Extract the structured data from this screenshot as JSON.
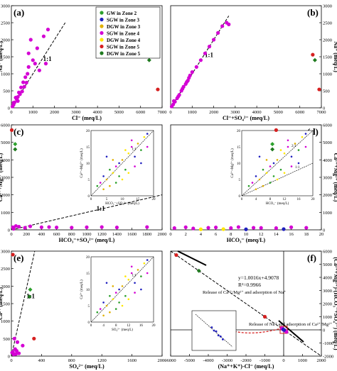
{
  "colors": {
    "gw_zone2": "#2ca02c",
    "sgw_zone3": "#1f1fbf",
    "dgw_zone3": "#e0b000",
    "sgw_zone4": "#d400d4",
    "dgw_zone4": "#ffe800",
    "sgw_zone5": "#d62020",
    "dgw_zone5": "#1f7a1f",
    "fit_line": "#000000"
  },
  "legend": [
    {
      "label": "GW in Zone 2",
      "color_key": "gw_zone2"
    },
    {
      "label": "SGW in Zone 3",
      "color_key": "sgw_zone3"
    },
    {
      "label": "DGW in Zone 3",
      "color_key": "dgw_zone3"
    },
    {
      "label": "SGW in Zone 4",
      "color_key": "sgw_zone4"
    },
    {
      "label": "DGW in Zone 4",
      "color_key": "dgw_zone4"
    },
    {
      "label": "SGW in Zone 5",
      "color_key": "sgw_zone5"
    },
    {
      "label": "DGW in Zone 5",
      "color_key": "dgw_zone5"
    }
  ],
  "chart_data": [
    {
      "panel": "(a)",
      "type": "scatter",
      "xlabel": "Cl⁻ (meq/L)",
      "ylabel": "Na⁺ (meq/L)",
      "xlim": [
        0,
        7000
      ],
      "ylim": [
        0,
        3000
      ],
      "xticks": [
        "0",
        "1000",
        "2000",
        "3000",
        "4000",
        "5000",
        "6000",
        "7000"
      ],
      "yticks": [
        "0",
        "500",
        "1000",
        "1500",
        "2000",
        "2500",
        "3000"
      ],
      "reference_line": {
        "label": "1:1",
        "points": [
          [
            0,
            0
          ],
          [
            2500,
            2500
          ]
        ]
      },
      "series": [
        {
          "name": "SGW in Zone 4",
          "color_key": "sgw_zone4",
          "points": [
            [
              50,
              40
            ],
            [
              100,
              90
            ],
            [
              150,
              160
            ],
            [
              250,
              250
            ],
            [
              300,
              320
            ],
            [
              400,
              400
            ],
            [
              500,
              480
            ],
            [
              600,
              620
            ],
            [
              700,
              740
            ],
            [
              800,
              1200
            ],
            [
              800,
              1600
            ],
            [
              900,
              2000
            ],
            [
              1000,
              1400
            ],
            [
              1200,
              1750
            ],
            [
              1300,
              1100
            ],
            [
              1500,
              2100
            ],
            [
              1600,
              1300
            ],
            [
              100,
              150
            ],
            [
              200,
              300
            ],
            [
              350,
              450
            ],
            [
              450,
              600
            ],
            [
              550,
              750
            ],
            [
              300,
              200
            ],
            [
              650,
              900
            ],
            [
              750,
              1000
            ],
            [
              1100,
              1300
            ],
            [
              1700,
              2300
            ]
          ]
        },
        {
          "name": "SGW in Zone 5",
          "color_key": "sgw_zone5",
          "points": [
            [
              6200,
              1560
            ],
            [
              6800,
              540
            ]
          ]
        },
        {
          "name": "DGW in Zone 5",
          "color_key": "dgw_zone5",
          "points": [
            [
              6400,
              1400
            ]
          ]
        }
      ]
    },
    {
      "panel": "(b)",
      "type": "scatter",
      "xlabel": "Cl⁻+SO₄²⁻ (meq/L)",
      "ylabel": "Na⁺ (meq/L)",
      "xlim": [
        0,
        7000
      ],
      "ylim": [
        0,
        3000
      ],
      "xticks": [
        "0",
        "1000",
        "2000",
        "3000",
        "4000",
        "5000",
        "6000",
        "7000"
      ],
      "yticks": [
        "0",
        "500",
        "1000",
        "1500",
        "2000",
        "2500",
        "3000"
      ],
      "reference_line": {
        "label": "1:1",
        "points": [
          [
            0,
            0
          ],
          [
            2700,
            2700
          ]
        ]
      },
      "series": [
        {
          "name": "SGW in Zone 4",
          "color_key": "sgw_zone4",
          "points": [
            [
              50,
              40
            ],
            [
              120,
              100
            ],
            [
              200,
              180
            ],
            [
              300,
              280
            ],
            [
              400,
              380
            ],
            [
              500,
              500
            ],
            [
              600,
              620
            ],
            [
              700,
              700
            ],
            [
              800,
              800
            ],
            [
              900,
              950
            ],
            [
              1000,
              1050
            ],
            [
              1200,
              1200
            ],
            [
              1400,
              1400
            ],
            [
              1600,
              1600
            ],
            [
              1800,
              1800
            ],
            [
              2000,
              2000
            ],
            [
              2200,
              2200
            ],
            [
              2400,
              2400
            ],
            [
              2600,
              2500
            ],
            [
              2700,
              2450
            ],
            [
              150,
              200
            ],
            [
              350,
              330
            ],
            [
              550,
              560
            ],
            [
              750,
              760
            ],
            [
              850,
              880
            ]
          ]
        },
        {
          "name": "SGW in Zone 5",
          "color_key": "sgw_zone5",
          "points": [
            [
              6600,
              1560
            ],
            [
              6900,
              540
            ]
          ]
        },
        {
          "name": "DGW in Zone 5",
          "color_key": "dgw_zone5",
          "points": [
            [
              6700,
              1400
            ]
          ]
        }
      ]
    },
    {
      "panel": "(c)",
      "type": "scatter",
      "xlabel": "HCO₃⁻+SO₄²⁻ (meq/L)",
      "ylabel": "Ca²⁺+Mg²⁺ (meq/L)",
      "xlim": [
        0,
        2000
      ],
      "ylim": [
        0,
        6000
      ],
      "xticks": [
        "0",
        "200",
        "400",
        "600",
        "800",
        "1000",
        "1200",
        "1400",
        "1600",
        "1800",
        "2000"
      ],
      "yticks": [
        "0",
        "1000",
        "2000",
        "3000",
        "4000",
        "5000",
        "6000"
      ],
      "reference_line": {
        "label": "1:1",
        "points": [
          [
            0,
            0
          ],
          [
            2000,
            2000
          ]
        ]
      },
      "inset": {
        "xlabel": "HCO₃⁻+SO₄²⁻ (meq/L)",
        "ylabel": "Ca²⁺+Mg²⁺ (meq/L)",
        "xlim": [
          0,
          20
        ],
        "ylim": [
          0,
          20
        ],
        "xticks": [
          "0",
          "5",
          "10",
          "15",
          "20"
        ],
        "yticks": [
          "0",
          "5",
          "10",
          "15",
          "20"
        ],
        "line_label": "1:1"
      },
      "series": [
        {
          "name": "SGW in Zone 4",
          "color_key": "sgw_zone4",
          "points": [
            [
              20,
              150
            ],
            [
              60,
              220
            ],
            [
              100,
              180
            ],
            [
              180,
              120
            ],
            [
              250,
              200
            ],
            [
              400,
              150
            ],
            [
              500,
              160
            ],
            [
              600,
              140
            ],
            [
              800,
              130
            ],
            [
              1000,
              150
            ],
            [
              1200,
              160
            ],
            [
              1400,
              140
            ],
            [
              1800,
              160
            ],
            [
              30,
              60
            ]
          ]
        },
        {
          "name": "SGW in Zone 5",
          "color_key": "sgw_zone5",
          "points": [
            [
              5,
              5700
            ]
          ]
        },
        {
          "name": "DGW in Zone 5",
          "color_key": "dgw_zone5",
          "points": [
            [
              50,
              4600
            ]
          ]
        },
        {
          "name": "GW in Zone 2",
          "color_key": "gw_zone2",
          "points": [
            [
              50,
              4900
            ]
          ]
        }
      ]
    },
    {
      "panel": "(d)",
      "type": "scatter",
      "xlabel": "HCO₃⁻ (meq/L)",
      "ylabel": "Ca²⁺+Mg²⁺ (meq/L)",
      "xlim": [
        0,
        20
      ],
      "ylim": [
        0,
        6000
      ],
      "xticks": [
        "0",
        "2",
        "4",
        "6",
        "8",
        "10",
        "12",
        "14",
        "16",
        "18",
        "20"
      ],
      "yticks": [
        "0",
        "1000",
        "2000",
        "3000",
        "4000",
        "5000",
        "6000"
      ],
      "inset": {
        "xlabel": "HCO₃⁻ (meq/L)",
        "ylabel": "Ca²⁺+Mg²⁺ (meq/L)",
        "xlim": [
          0,
          20
        ],
        "ylim": [
          0,
          20
        ],
        "xticks": [
          "0",
          "4",
          "8",
          "12",
          "16",
          "20"
        ],
        "yticks": [
          "0",
          "5",
          "10",
          "15",
          "20"
        ],
        "line_labels": [
          "2:1",
          "1:1"
        ]
      },
      "series": [
        {
          "name": "SGW in Zone 4",
          "color_key": "sgw_zone4",
          "points": [
            [
              0.5,
              100
            ],
            [
              2,
              150
            ],
            [
              3,
              80
            ],
            [
              5,
              120
            ],
            [
              6,
              140
            ],
            [
              8,
              100
            ],
            [
              9,
              160
            ],
            [
              11,
              120
            ],
            [
              12,
              110
            ],
            [
              14,
              100
            ],
            [
              16,
              150
            ],
            [
              18,
              120
            ]
          ]
        },
        {
          "name": "DGW in Zone 4",
          "color_key": "dgw_zone4",
          "points": [
            [
              4,
              30
            ],
            [
              7,
              40
            ]
          ]
        },
        {
          "name": "SGW in Zone 3",
          "color_key": "sgw_zone3",
          "points": [
            [
              10,
              30
            ],
            [
              15,
              40
            ]
          ]
        },
        {
          "name": "SGW in Zone 5",
          "color_key": "sgw_zone5",
          "points": [
            [
              14,
              5700
            ]
          ]
        },
        {
          "name": "DGW in Zone 5",
          "color_key": "dgw_zone5",
          "points": [
            [
              13.5,
              4600
            ]
          ]
        },
        {
          "name": "GW in Zone 2",
          "color_key": "gw_zone2",
          "points": [
            [
              13.5,
              4900
            ]
          ]
        }
      ]
    },
    {
      "panel": "(e)",
      "type": "scatter",
      "xlabel": "SO₄²⁻ (meq/L)",
      "ylabel": "Ca²⁺ (meq/L)",
      "xlim": [
        0,
        2000
      ],
      "ylim": [
        0,
        3000
      ],
      "xticks": [
        "0",
        "400",
        "800",
        "1200",
        "1600",
        "2000"
      ],
      "yticks": [
        "0",
        "500",
        "1000",
        "1500",
        "2000",
        "2500",
        "3000"
      ],
      "reference_line": {
        "label": "1:1",
        "points": [
          [
            0,
            0
          ],
          [
            310,
            3000
          ]
        ]
      },
      "inset": {
        "xlabel": "SO₄²⁻ (meq/L)",
        "ylabel": "Ca²⁺ (meq/L)",
        "xlim": [
          0,
          20
        ],
        "ylim": [
          0,
          20
        ],
        "xticks": [
          "0",
          "4",
          "8",
          "12",
          "16",
          "20"
        ],
        "yticks": [
          "0",
          "5",
          "10",
          "15",
          "20"
        ],
        "line_label": "1:1"
      },
      "series": [
        {
          "name": "SGW in Zone 4",
          "color_key": "sgw_zone4",
          "points": [
            [
              10,
              100
            ],
            [
              30,
              50
            ],
            [
              50,
              200
            ],
            [
              70,
              150
            ],
            [
              100,
              80
            ],
            [
              150,
              300
            ],
            [
              80,
              400
            ],
            [
              40,
              500
            ],
            [
              20,
              120
            ],
            [
              60,
              60
            ]
          ]
        },
        {
          "name": "SGW in Zone 5",
          "color_key": "sgw_zone5",
          "points": [
            [
              20,
              2900
            ],
            [
              300,
              500
            ]
          ]
        },
        {
          "name": "DGW in Zone 5",
          "color_key": "dgw_zone5",
          "points": [
            [
              240,
              1700
            ]
          ]
        },
        {
          "name": "GW in Zone 2",
          "color_key": "gw_zone2",
          "points": [
            [
              250,
              1900
            ]
          ]
        }
      ]
    },
    {
      "panel": "(f)",
      "type": "scatter",
      "xlabel": "(Na⁺+K⁺)-Cl⁻ (meq/L)",
      "ylabel": "(Ca²⁺+Mg²⁺)-(HCO₃⁻+SO₄²⁻) (meq/L)",
      "xlim": [
        -6000,
        2000
      ],
      "ylim": [
        -2000,
        6000
      ],
      "xticks": [
        "-6000",
        "-5000",
        "-4000",
        "-3000",
        "-2000",
        "-1000",
        "0",
        "1000",
        "2000"
      ],
      "yticks": [
        "-2000",
        "-1000",
        "0",
        "1000",
        "2000",
        "3000",
        "4000",
        "5000",
        "6000"
      ],
      "fit": {
        "equation": "y=1.0016x+4.9078",
        "r2": "R²=0.9966"
      },
      "annotations": [
        "Release of Ca²⁺/Mg²⁺ and adsorption of Na⁺",
        "Release of Na⁺ and adsorption of Ca²⁺/Mg²⁺"
      ],
      "series": [
        {
          "name": "SGW in Zone 5",
          "color_key": "sgw_zone5",
          "points": [
            [
              -5700,
              5700
            ],
            [
              -1000,
              1000
            ]
          ]
        },
        {
          "name": "DGW in Zone 5",
          "color_key": "dgw_zone5",
          "points": [
            [
              -4500,
              4500
            ]
          ]
        },
        {
          "name": "SGW in Zone 4",
          "color_key": "sgw_zone4",
          "points": [
            [
              -50,
              60
            ],
            [
              0,
              0
            ],
            [
              50,
              -40
            ],
            [
              100,
              -80
            ],
            [
              -100,
              120
            ],
            [
              150,
              -150
            ],
            [
              30,
              -20
            ]
          ]
        },
        {
          "name": "SGW in Zone 3",
          "color_key": "sgw_zone3",
          "points": [
            [
              20,
              -10
            ],
            [
              -20,
              30
            ]
          ]
        }
      ]
    }
  ]
}
